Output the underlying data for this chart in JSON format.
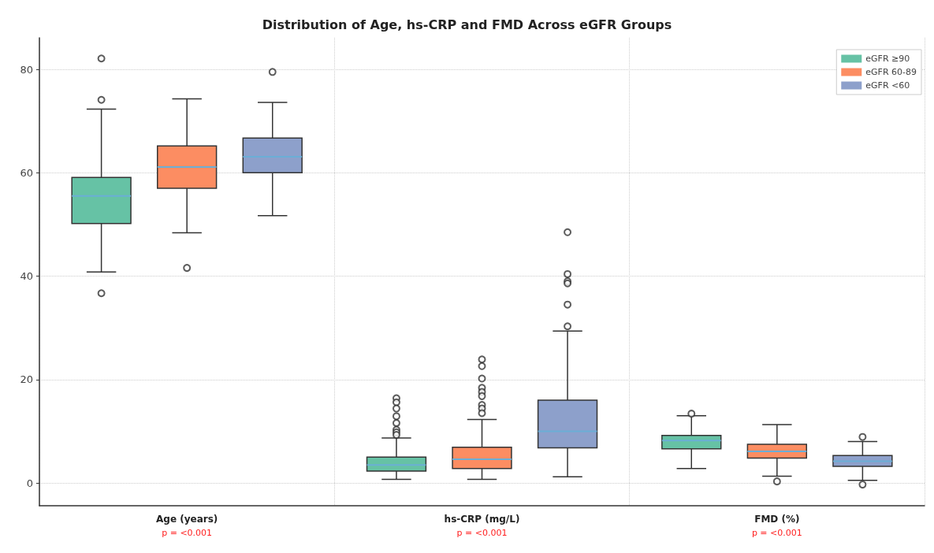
{
  "chart_data": {
    "type": "box",
    "title": "Distribution of Age, hs-CRP and FMD Across eGFR Groups",
    "categories": [
      "Age (years)",
      "hs-CRP (mg/L)",
      "FMD (%)"
    ],
    "annotations": [
      "p = <0.001",
      "p = <0.001",
      "p = <0.001"
    ],
    "ylim": [
      -4.4,
      86.1
    ],
    "yticks": [
      0,
      20,
      40,
      60,
      80
    ],
    "grid": true,
    "legend": "top right",
    "series": [
      {
        "name": "eGFR ≥90",
        "color": "#66c2a5",
        "boxes": [
          {
            "low": 40.8,
            "q1": 50.2,
            "median": 55.5,
            "q3": 59.1,
            "high": 72.3,
            "outliers": [
              82.1,
              74.1,
              36.7
            ]
          },
          {
            "low": 0.7,
            "q1": 2.3,
            "median": 3.5,
            "q3": 5.0,
            "high": 8.7,
            "outliers": [
              16.4,
              15.6,
              14.4,
              12.9,
              11.6,
              10.3,
              9.8,
              9.3
            ]
          },
          {
            "low": 2.8,
            "q1": 6.6,
            "median": 8.2,
            "q3": 9.2,
            "high": 13.0,
            "outliers": [
              13.4
            ]
          }
        ]
      },
      {
        "name": "eGFR 60-89",
        "color": "#fc8d62",
        "boxes": [
          {
            "low": 48.4,
            "q1": 57.0,
            "median": 61.1,
            "q3": 65.2,
            "high": 74.3,
            "outliers": [
              41.6
            ]
          },
          {
            "low": 0.7,
            "q1": 2.8,
            "median": 4.6,
            "q3": 6.9,
            "high": 12.3,
            "outliers": [
              23.9,
              22.6,
              20.2,
              18.4,
              17.6,
              16.8,
              15.1,
              14.4,
              13.5
            ]
          },
          {
            "low": 1.3,
            "q1": 4.8,
            "median": 6.1,
            "q3": 7.5,
            "high": 11.3,
            "outliers": [
              0.3
            ]
          }
        ]
      },
      {
        "name": "eGFR <60",
        "color": "#8da0cb",
        "boxes": [
          {
            "low": 51.7,
            "q1": 60.0,
            "median": 63.1,
            "q3": 66.7,
            "high": 73.6,
            "outliers": [
              79.5
            ]
          },
          {
            "low": 1.2,
            "q1": 6.8,
            "median": 10.0,
            "q3": 16.0,
            "high": 29.4,
            "outliers": [
              48.5,
              40.4,
              39.0,
              38.6,
              34.5,
              30.3
            ]
          },
          {
            "low": 0.5,
            "q1": 3.2,
            "median": 4.2,
            "q3": 5.3,
            "high": 8.0,
            "outliers": [
              8.9,
              -0.3
            ]
          }
        ]
      }
    ]
  }
}
